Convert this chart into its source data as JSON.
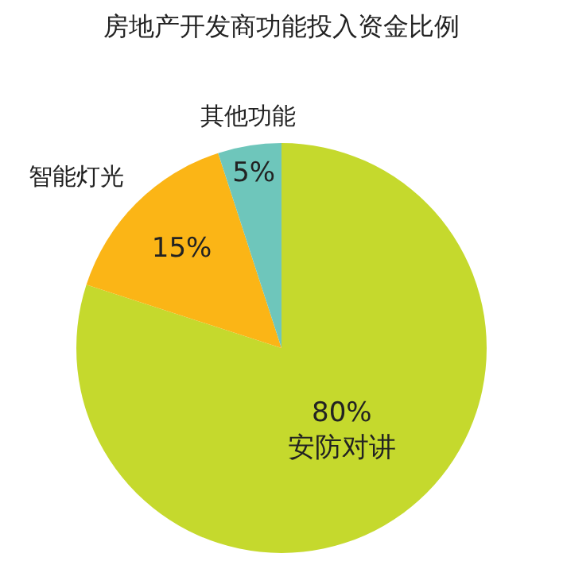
{
  "chart_data": {
    "type": "pie",
    "title": "房地产开发商功能投入资金比例",
    "categories": [
      "安防对讲",
      "智能灯光",
      "其他功能"
    ],
    "values": [
      80,
      15,
      5
    ],
    "value_labels": [
      "80%",
      "15%",
      "5%"
    ],
    "colors": [
      "#c5d92d",
      "#fbb516",
      "#6ec6bb"
    ],
    "legend": false
  }
}
